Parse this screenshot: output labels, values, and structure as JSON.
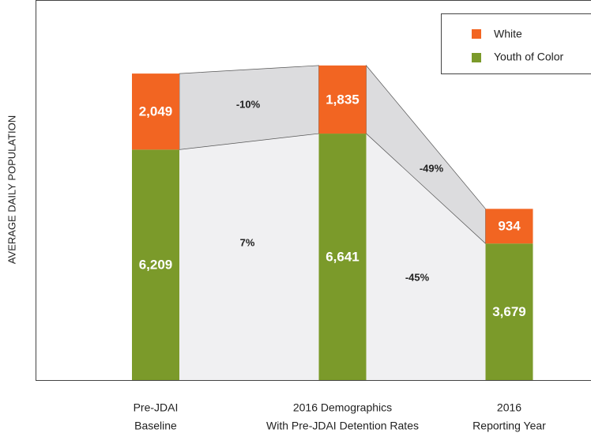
{
  "chart_data": {
    "type": "stacked-bar",
    "ylabel": "AVERAGE DAILY POPULATION",
    "categories": [
      [
        "Pre-JDAI",
        "Baseline"
      ],
      [
        "2016 Demographics",
        "With Pre-JDAI Detention Rates"
      ],
      [
        "2016",
        "Reporting Year"
      ]
    ],
    "series": [
      {
        "name": "Youth of Color",
        "color": "#7b9a2a",
        "values": [
          6209,
          6641,
          3679
        ],
        "value_labels": [
          "6,209",
          "6,641",
          "3,679"
        ]
      },
      {
        "name": "White",
        "color": "#f26522",
        "values": [
          2049,
          1835,
          934
        ],
        "value_labels": [
          "2,049",
          "1,835",
          "934"
        ]
      }
    ],
    "ylim": [
      0,
      10240
    ],
    "annotations": [
      "-10%",
      "7%",
      "-49%",
      "-45%"
    ],
    "legend": "upper right"
  }
}
